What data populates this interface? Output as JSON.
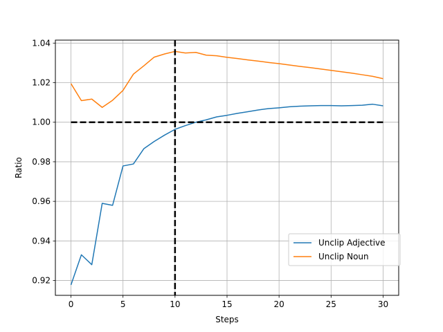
{
  "chart_data": {
    "type": "line",
    "xlabel": "Steps",
    "ylabel": "Ratio",
    "xlim": [
      -1.5,
      31.5
    ],
    "ylim": [
      0.9125,
      1.0415
    ],
    "xticks": [
      0,
      5,
      10,
      15,
      20,
      25,
      30
    ],
    "yticks": [
      0.92,
      0.94,
      0.96,
      0.98,
      1.0,
      1.02,
      1.04
    ],
    "xtick_labels": [
      "0",
      "5",
      "10",
      "15",
      "20",
      "25",
      "30"
    ],
    "ytick_labels": [
      "0.92",
      "0.94",
      "0.96",
      "0.98",
      "1.00",
      "1.02",
      "1.04"
    ],
    "grid": true,
    "legend_position": "lower-right",
    "reference_lines": [
      {
        "orientation": "horizontal",
        "value": 1.0,
        "from": 0,
        "to": 30,
        "color": "#000000",
        "style": "dashed"
      },
      {
        "orientation": "vertical",
        "value": 10,
        "color": "#000000",
        "style": "dashed"
      }
    ],
    "x": [
      0,
      1,
      2,
      3,
      4,
      5,
      6,
      7,
      8,
      9,
      10,
      11,
      12,
      13,
      14,
      15,
      16,
      17,
      18,
      19,
      20,
      21,
      22,
      23,
      24,
      25,
      26,
      27,
      28,
      29,
      30
    ],
    "series": [
      {
        "name": "Unclip Adjective",
        "color": "#1f77b4",
        "values": [
          0.9178,
          0.933,
          0.928,
          0.959,
          0.958,
          0.9779,
          0.9789,
          0.9866,
          0.9903,
          0.9935,
          0.9964,
          0.9983,
          1.0,
          1.0012,
          1.0027,
          1.0035,
          1.0045,
          1.0053,
          1.0062,
          1.0069,
          1.0073,
          1.0078,
          1.0081,
          1.0083,
          1.0084,
          1.0084,
          1.0083,
          1.0084,
          1.0086,
          1.0091,
          1.0083
        ]
      },
      {
        "name": "Unclip Noun",
        "color": "#ff7f0e",
        "values": [
          1.0195,
          1.0109,
          1.0117,
          1.0075,
          1.0111,
          1.0161,
          1.0243,
          1.0285,
          1.0329,
          1.0345,
          1.0358,
          1.035,
          1.0353,
          1.0339,
          1.0336,
          1.0328,
          1.0322,
          1.0315,
          1.0309,
          1.0302,
          1.0296,
          1.0289,
          1.0282,
          1.0276,
          1.0269,
          1.0262,
          1.0255,
          1.0248,
          1.024,
          1.0232,
          1.022
        ]
      }
    ]
  }
}
